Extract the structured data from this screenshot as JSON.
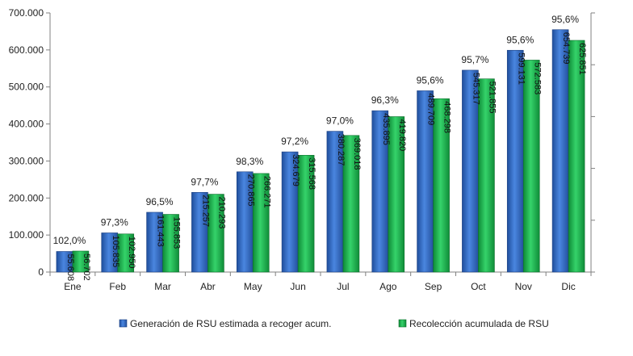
{
  "chart_data": {
    "type": "bar",
    "categories": [
      "Ene",
      "Feb",
      "Mar",
      "Abr",
      "May",
      "Jun",
      "Jul",
      "Ago",
      "Sep",
      "Oct",
      "Nov",
      "Dic"
    ],
    "series": [
      {
        "name": "Generación de RSU estimada a recoger acum.",
        "color": "#3a6fc4",
        "values": [
          55608,
          105835,
          161443,
          215257,
          270865,
          324679,
          380287,
          435895,
          489709,
          545317,
          599131,
          654739
        ],
        "labels": [
          "55.608",
          "105.835",
          "161.443",
          "215.257",
          "270.865",
          "324.679",
          "380.287",
          "435.895",
          "489.709",
          "545.317",
          "599.131",
          "654.739"
        ]
      },
      {
        "name": "Recolección acumulada de RSU",
        "color": "#22b14c",
        "values": [
          56702,
          102950,
          155853,
          210293,
          266271,
          315568,
          369018,
          419820,
          468298,
          521855,
          572583,
          625851
        ],
        "labels": [
          "56.702",
          "102.950",
          "155.853",
          "210.293",
          "266.271",
          "315.568",
          "369.018",
          "419.820",
          "468.298",
          "521.855",
          "572.583",
          "625.851"
        ]
      }
    ],
    "percent_labels": [
      "102,0%",
      "97,3%",
      "96,5%",
      "97,7%",
      "98,3%",
      "97,2%",
      "97,0%",
      "96,3%",
      "95,6%",
      "95,7%",
      "95,6%",
      "95,6%"
    ],
    "y_ticks": [
      0,
      100000,
      200000,
      300000,
      400000,
      500000,
      600000,
      700000
    ],
    "y_tick_labels": [
      "0",
      "100.000",
      "200.000",
      "300.000",
      "400.000",
      "500.000",
      "600.000",
      "700.000"
    ],
    "ylim": [
      0,
      700000
    ],
    "grid": false,
    "legend": "bottom",
    "title": "",
    "xlabel": "",
    "ylabel": ""
  }
}
